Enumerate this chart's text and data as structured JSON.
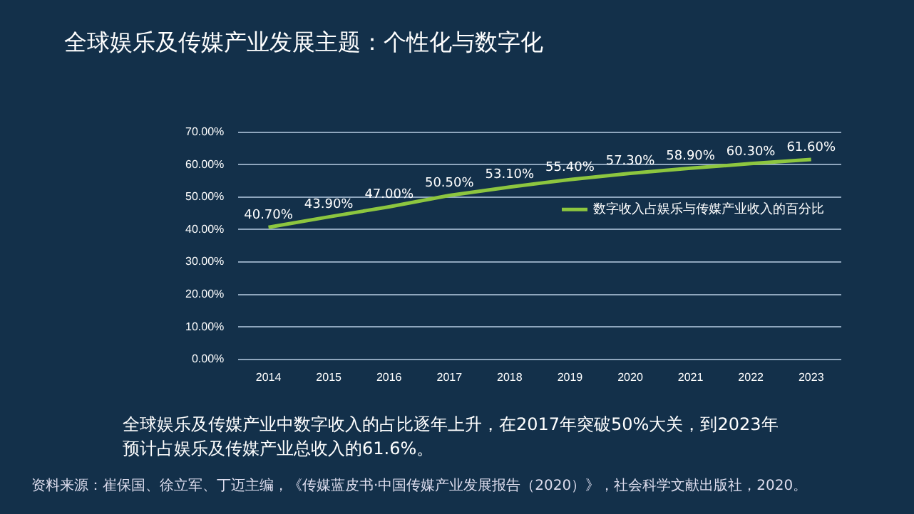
{
  "chart_data": {
    "type": "line",
    "title": "全球娱乐及传媒产业发展主题：个性化与数字化",
    "categories": [
      "2014",
      "2015",
      "2016",
      "2017",
      "2018",
      "2019",
      "2020",
      "2021",
      "2022",
      "2023"
    ],
    "series": [
      {
        "name": "数字收入占娱乐与传媒产业收入的百分比",
        "color": "#8dc63f",
        "values": [
          40.7,
          43.9,
          47.0,
          50.5,
          53.1,
          55.4,
          57.3,
          58.9,
          60.3,
          61.6
        ],
        "value_labels": [
          "40.70%",
          "43.90%",
          "47.00%",
          "50.50%",
          "53.10%",
          "55.40%",
          "57.30%",
          "58.90%",
          "60.30%",
          "61.60%"
        ]
      }
    ],
    "ylim": [
      0,
      70
    ],
    "yticks": [
      {
        "value": 0,
        "label": "0.00%"
      },
      {
        "value": 10,
        "label": "10.00%"
      },
      {
        "value": 20,
        "label": "20.00%"
      },
      {
        "value": 30,
        "label": "30.00%"
      },
      {
        "value": 40,
        "label": "40.00%"
      },
      {
        "value": 50,
        "label": "50.00%"
      },
      {
        "value": 60,
        "label": "60.00%"
      },
      {
        "value": 70,
        "label": "70.00%"
      }
    ],
    "grid": "y",
    "legend": "right",
    "marker": "none",
    "line_style": "solid",
    "annotations": [
      "全球娱乐及传媒产业中数字收入的占比逐年上升，在2017年突破50%大关，到2023年预计占娱乐及传媒产业总收入的61.6%。",
      "资料来源：崔保国、徐立军、丁迈主编，《传媒蓝皮书·中国传媒产业发展报告（2020）》，社会科学文献出版社，2020。"
    ]
  }
}
